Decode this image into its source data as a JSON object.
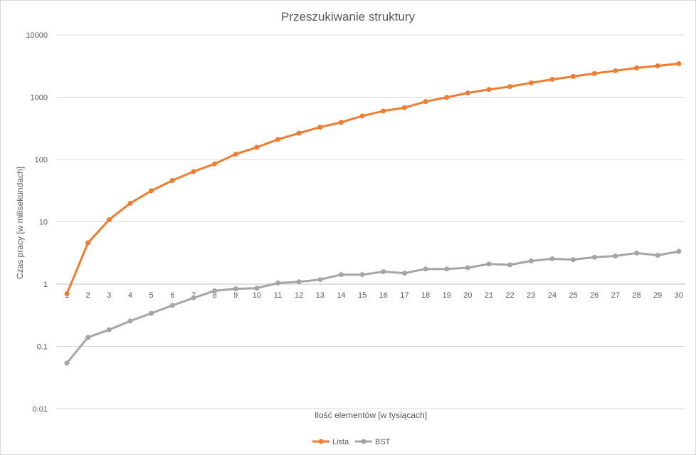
{
  "chart_data": {
    "type": "line",
    "title": "Przeszukiwanie struktury",
    "xlabel": "Ilość elementów [w tysiącach]",
    "ylabel": "Czas pracy [w milisekundach]",
    "y_scale": "log",
    "ylim": [
      0.01,
      10000
    ],
    "y_ticks": [
      "0.01",
      "0.1",
      "1",
      "10",
      "100",
      "1000",
      "10000"
    ],
    "x": [
      1,
      2,
      3,
      4,
      5,
      6,
      7,
      8,
      9,
      10,
      11,
      12,
      13,
      14,
      15,
      16,
      17,
      18,
      19,
      20,
      21,
      22,
      23,
      24,
      25,
      26,
      27,
      28,
      29,
      30
    ],
    "grid": true,
    "legend_position": "bottom",
    "series": [
      {
        "name": "Lista",
        "color": "#ED7D31",
        "values": [
          0.7,
          4.6,
          10.8,
          19.8,
          31.5,
          46,
          64,
          85,
          122,
          157,
          210,
          265,
          330,
          395,
          500,
          600,
          680,
          850,
          995,
          1170,
          1330,
          1480,
          1700,
          1930,
          2150,
          2400,
          2660,
          2950,
          3180,
          3450
        ]
      },
      {
        "name": "BST",
        "color": "#A5A5A5",
        "values": [
          0.054,
          0.14,
          0.185,
          0.255,
          0.34,
          0.455,
          0.6,
          0.78,
          0.84,
          0.86,
          1.04,
          1.09,
          1.18,
          1.42,
          1.42,
          1.58,
          1.5,
          1.75,
          1.75,
          1.83,
          2.1,
          2.04,
          2.35,
          2.55,
          2.47,
          2.7,
          2.83,
          3.15,
          2.9,
          3.35
        ]
      }
    ]
  }
}
